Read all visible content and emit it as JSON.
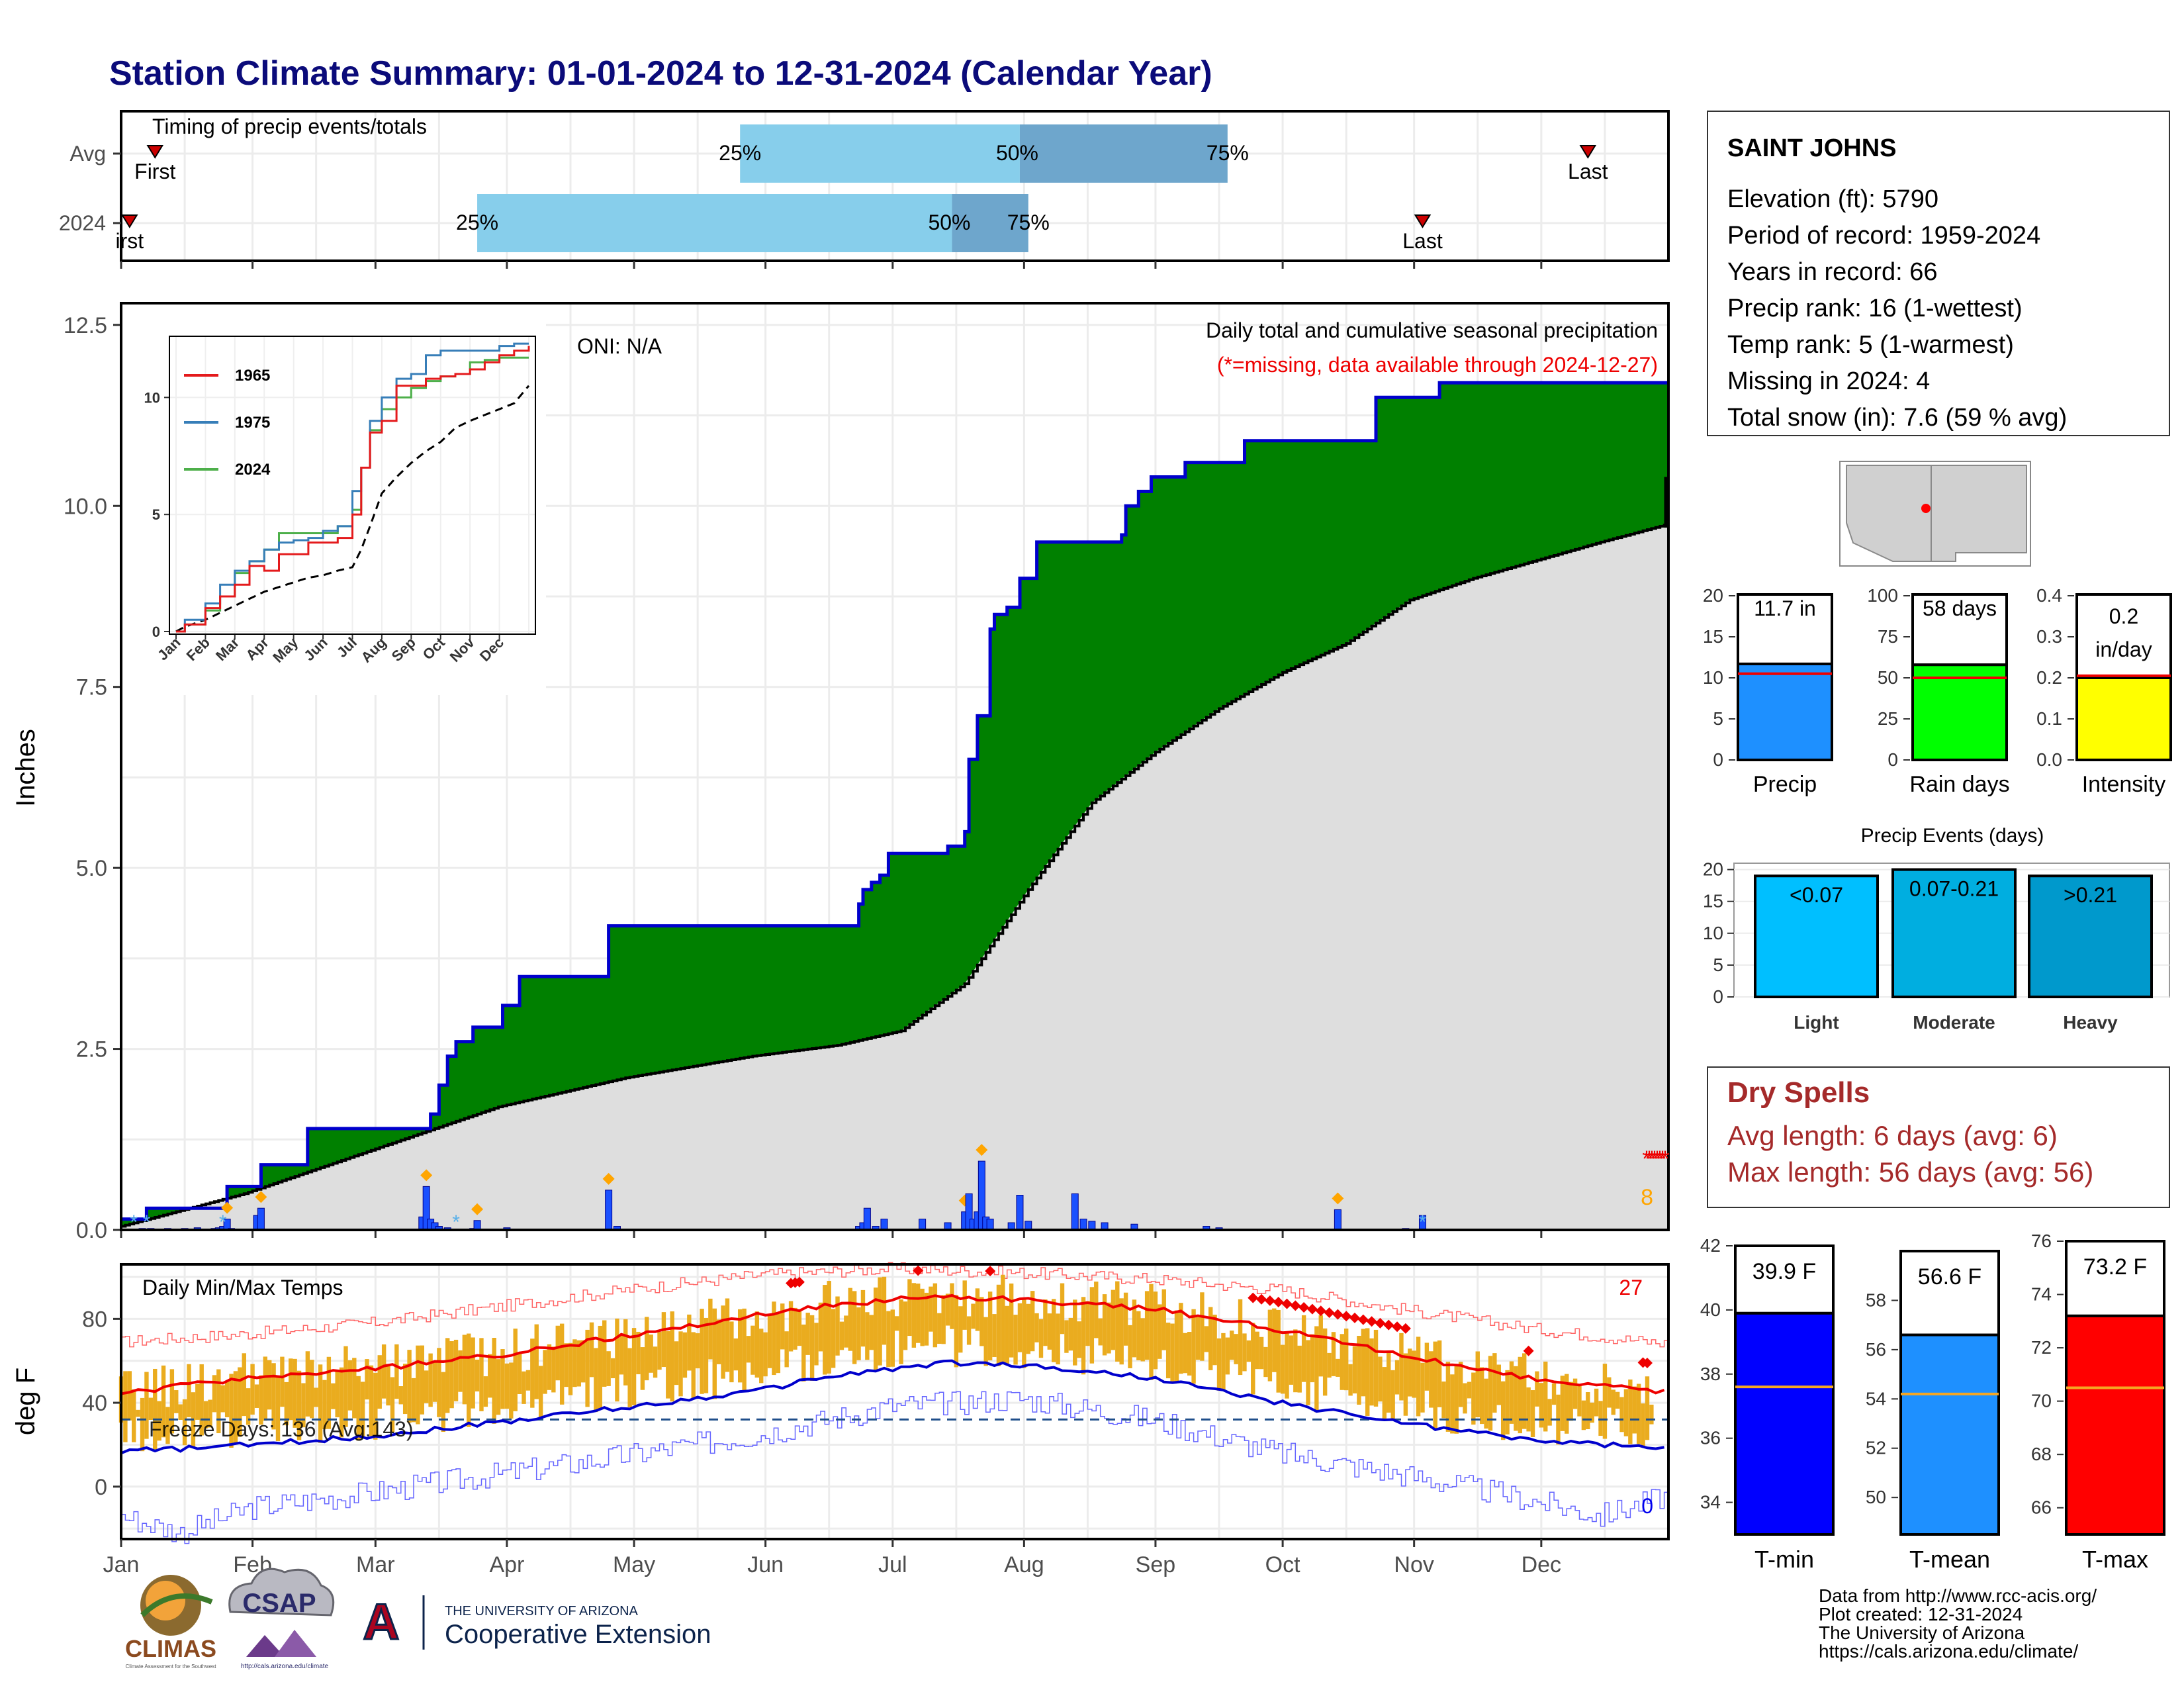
{
  "title": "Station Climate Summary: 01-01-2024 to 12-31-2024 (Calendar Year)",
  "colors": {
    "title": "#0b0b7a",
    "green": "#008000",
    "blue_line": "#0000cc",
    "grey_fill": "#dedede",
    "red": "#ee0000",
    "light_blue": "#87ceeb",
    "mid_blue": "#6ea6cc",
    "gold": "#eaac1f",
    "orange": "#ffa500",
    "bright_blue": "#1a50ff",
    "precip_bar": "#1e90ff",
    "rain_bar": "#00ff00",
    "intensity_bar": "#ffff00",
    "light_bar": "#00bfff",
    "moderate_bar": "#00aee0",
    "heavy_bar": "#0099cc",
    "dry_spells": "#a52a2a",
    "tmin": "#0000ff",
    "tmean": "#1e90ff",
    "tmax": "#ff0000"
  },
  "timing": {
    "title": "Timing of precip events/totals",
    "rows": [
      "Avg",
      "2024"
    ],
    "avg": {
      "first_doy": 9,
      "q25_doy": 147,
      "q50_doy": 213,
      "q75_doy": 262,
      "last_doy": 347,
      "label_first": "First",
      "label_last": "Last"
    },
    "y2024": {
      "first_doy": 3,
      "q25_doy": 85,
      "q50_doy": 197,
      "q75_doy": 215,
      "last_doy": 308,
      "label_first": "irst",
      "label_last": "Last"
    },
    "pct_labels": [
      "25%",
      "50%",
      "75%"
    ]
  },
  "precip_panel": {
    "ylabel": "Inches",
    "oni": "ONI: N/A",
    "legend_title": "Daily total and cumulative seasonal precipitation",
    "missing_note": "(*=missing, data available through 2024-12-27)",
    "missing_count": "8",
    "y_ticks": [
      "0.0",
      "2.5",
      "5.0",
      "7.5",
      "10.0",
      "12.5"
    ]
  },
  "inset": {
    "series": [
      {
        "name": "1965",
        "color": "#e41a1c"
      },
      {
        "name": "1975",
        "color": "#377eb8"
      },
      {
        "name": "2024",
        "color": "#4daf4a"
      }
    ],
    "y_ticks": [
      "0",
      "5",
      "10"
    ],
    "x_ticks": [
      "Jan",
      "Feb",
      "Mar",
      "Apr",
      "May",
      "Jun",
      "Jul",
      "Aug",
      "Sep",
      "Oct",
      "Nov",
      "Dec"
    ]
  },
  "temp_panel": {
    "ylabel": "deg F",
    "title": "Daily Min/Max Temps",
    "freeze_text": "Freeze Days: 136 (Avg:143)",
    "record_high_count": "27",
    "record_low_count": "0",
    "y_ticks": [
      "0",
      "40",
      "80"
    ]
  },
  "months": [
    "Jan",
    "Feb",
    "Mar",
    "Apr",
    "May",
    "Jun",
    "Jul",
    "Aug",
    "Sep",
    "Oct",
    "Nov",
    "Dec"
  ],
  "station": {
    "name": "SAINT JOHNS",
    "lines": [
      "Elevation (ft): 5790",
      "Period of record: 1959-2024",
      "Years in record: 66",
      "Precip rank: 16 (1-wettest)",
      "Temp rank: 5 (1-warmest)",
      "Missing in 2024: 4",
      "Total snow (in): 7.6 (59 % avg)"
    ]
  },
  "mini_bars": [
    {
      "label": "Precip",
      "value_text": "11.7 in",
      "value": 11.7,
      "avg": 10.5,
      "ymax": 20,
      "ticks": [
        "0",
        "5",
        "10",
        "15",
        "20"
      ],
      "color_key": "precip_bar"
    },
    {
      "label": "Rain days",
      "value_text": "58 days",
      "value": 58,
      "avg": 50,
      "ymax": 100,
      "ticks": [
        "0",
        "25",
        "50",
        "75",
        "100"
      ],
      "color_key": "rain_bar"
    },
    {
      "label": "Intensity",
      "value_text": "0.2",
      "value_text2": "in/day",
      "value": 0.2,
      "avg": 0.205,
      "ymax": 0.4,
      "ticks": [
        "0.0",
        "0.1",
        "0.2",
        "0.3",
        "0.4"
      ],
      "color_key": "intensity_bar"
    }
  ],
  "precip_events": {
    "title": "Precip Events (days)",
    "ticks": [
      "0",
      "5",
      "10",
      "15",
      "20"
    ],
    "bars": [
      {
        "cat": "Light",
        "label": "<0.07",
        "value": 19
      },
      {
        "cat": "Moderate",
        "label": "0.07-0.21",
        "value": 20
      },
      {
        "cat": "Heavy",
        "label": ">0.21",
        "value": 19
      }
    ]
  },
  "dry_spells": {
    "title": "Dry Spells",
    "avg_line": "Avg length: 6 days (avg: 6)",
    "max_line": "Max length: 56 days (avg: 56)"
  },
  "temp_bars": [
    {
      "label": "T-min",
      "value_text": "39.9 F",
      "value": 39.9,
      "avg": 37.6,
      "ymin": 33,
      "ymax": 42,
      "ticks": [
        "34",
        "36",
        "38",
        "40",
        "42"
      ],
      "color_key": "tmin"
    },
    {
      "label": "T-mean",
      "value_text": "56.6 F",
      "value": 56.6,
      "avg": 54.2,
      "ymin": 48.5,
      "ymax": 60,
      "ticks": [
        "50",
        "52",
        "54",
        "56",
        "58"
      ],
      "color_key": "tmean"
    },
    {
      "label": "T-max",
      "value_text": "73.2 F",
      "value": 73.2,
      "avg": 70.5,
      "ymin": 65,
      "ymax": 76,
      "ticks": [
        "66",
        "68",
        "70",
        "72",
        "74",
        "76"
      ],
      "color_key": "tmax"
    }
  ],
  "footer": {
    "lines": [
      "Data from http://www.rcc-acis.org/",
      "Plot created: 12-31-2024",
      "The University of Arizona",
      "https://cals.arizona.edu/climate/"
    ],
    "logo_climas": "CLIMAS",
    "logo_climas_sub": "Climate Assessment for the Southwest",
    "logo_csap": "CSAP",
    "logo_csap_sub": "http://cals.arizona.edu/climate",
    "logo_ua_small": "THE UNIVERSITY OF ARIZONA",
    "logo_ua_big": "Cooperative Extension",
    "logo_ua_letter": "A"
  },
  "chart_data": {
    "type": "area",
    "title": "Station Climate Summary: 01-01-2024 to 12-31-2024 (Calendar Year)",
    "ylabel": "Inches",
    "ylim": [
      0,
      12.8
    ],
    "xlim_doy": [
      1,
      366
    ],
    "series": [
      {
        "name": "2024 cumulative",
        "x_doy": [
          1,
          7,
          26,
          34,
          45,
          73,
          74,
          76,
          78,
          80,
          84,
          91,
          95,
          116,
          172,
          175,
          176,
          178,
          180,
          182,
          189,
          196,
          200,
          201,
          203,
          206,
          207,
          209,
          210,
          213,
          217,
          226,
          237,
          238,
          241,
          244,
          245,
          252,
          266,
          270,
          297,
          312,
          366
        ],
        "values": [
          0.15,
          0.3,
          0.6,
          0.9,
          1.4,
          1.4,
          1.6,
          2.0,
          2.4,
          2.6,
          2.8,
          3.1,
          3.5,
          4.2,
          4.2,
          4.5,
          4.7,
          4.8,
          4.9,
          5.2,
          5.2,
          5.3,
          5.5,
          6.5,
          7.1,
          8.3,
          8.5,
          8.5,
          8.6,
          9.0,
          9.5,
          9.5,
          9.6,
          10.0,
          10.2,
          10.4,
          10.4,
          10.6,
          10.9,
          10.9,
          11.5,
          11.7,
          11.7
        ]
      },
      {
        "name": "Average cumulative",
        "x_doy": [
          1,
          30,
          60,
          90,
          120,
          150,
          170,
          185,
          200,
          215,
          230,
          245,
          260,
          275,
          290,
          305,
          320,
          335,
          350,
          366
        ],
        "values": [
          0.05,
          0.5,
          1.1,
          1.7,
          2.1,
          2.4,
          2.55,
          2.75,
          3.4,
          4.7,
          5.9,
          6.6,
          7.2,
          7.7,
          8.1,
          8.7,
          9.0,
          9.25,
          9.5,
          9.75
        ]
      }
    ],
    "daily_precip": {
      "doy": [
        3,
        6,
        8,
        10,
        12,
        14,
        16,
        19,
        21,
        23,
        24,
        25,
        26,
        27,
        33,
        34,
        72,
        73,
        74,
        75,
        76,
        78,
        84,
        85,
        92,
        116,
        118,
        175,
        176,
        177,
        179,
        181,
        190,
        196,
        200,
        201,
        202,
        203,
        204,
        205,
        206,
        211,
        213,
        215,
        226,
        228,
        230,
        233,
        240,
        257,
        260,
        288,
        304,
        308
      ],
      "values": [
        0.01,
        0.02,
        0.02,
        0.01,
        0.02,
        0.01,
        0.02,
        0.03,
        0.01,
        0.02,
        0.03,
        0.05,
        0.15,
        0.02,
        0.2,
        0.3,
        0.18,
        0.6,
        0.15,
        0.1,
        0.05,
        0.03,
        0.02,
        0.13,
        0.03,
        0.55,
        0.05,
        0.05,
        0.1,
        0.3,
        0.05,
        0.15,
        0.15,
        0.1,
        0.25,
        0.5,
        0.15,
        0.25,
        0.95,
        0.18,
        0.15,
        0.1,
        0.48,
        0.12,
        0.5,
        0.15,
        0.12,
        0.1,
        0.08,
        0.05,
        0.03,
        0.28,
        0.02,
        0.2
      ]
    },
    "inset_cumulative": {
      "x_month": [
        0,
        0.3,
        1,
        1.5,
        2,
        2.5,
        3,
        3.5,
        4,
        4.5,
        5,
        5.5,
        6,
        6.3,
        6.6,
        7,
        7.5,
        8,
        8.5,
        9,
        9.5,
        10,
        10.5,
        11,
        11.5,
        12
      ],
      "1965": [
        0,
        0.3,
        1.0,
        1.5,
        2.0,
        2.8,
        2.6,
        3.3,
        3.3,
        3.8,
        3.8,
        4.0,
        5.0,
        7.0,
        8.5,
        9.0,
        10.5,
        10.5,
        10.8,
        10.9,
        11.0,
        11.2,
        11.5,
        11.8,
        12.0,
        12.2
      ],
      "1975": [
        0,
        0.5,
        1.2,
        2.0,
        2.6,
        3.0,
        3.5,
        3.8,
        3.9,
        4.0,
        4.3,
        4.5,
        6.0,
        7.0,
        9.0,
        10.0,
        10.8,
        11.0,
        11.8,
        12.0,
        12.0,
        12.0,
        12.0,
        12.2,
        12.3,
        12.3
      ],
      "2024": [
        0,
        0.3,
        0.9,
        1.5,
        2.5,
        3.0,
        3.5,
        4.2,
        4.2,
        4.2,
        4.2,
        4.5,
        5.2,
        7.0,
        8.6,
        9.5,
        10.0,
        10.4,
        10.7,
        10.9,
        11.0,
        11.5,
        11.6,
        11.7,
        11.7,
        11.7
      ],
      "average": [
        0,
        0.2,
        0.5,
        0.8,
        1.1,
        1.4,
        1.7,
        1.9,
        2.1,
        2.3,
        2.4,
        2.6,
        2.75,
        3.5,
        4.5,
        5.9,
        6.6,
        7.2,
        7.7,
        8.1,
        8.7,
        9.0,
        9.25,
        9.5,
        9.75,
        10.5
      ]
    },
    "temperature": {
      "ylim": [
        -25,
        106
      ],
      "freeze_line_y": 32,
      "normal_high": {
        "x_doy": [
          1,
          15,
          32,
          60,
          91,
          121,
          152,
          166,
          182,
          196,
          213,
          244,
          274,
          305,
          335,
          366
        ],
        "values": [
          44,
          48,
          52,
          56,
          63,
          72,
          82,
          86,
          89,
          91,
          89,
          85,
          75,
          62,
          51,
          45
        ]
      },
      "normal_low": {
        "x_doy": [
          1,
          15,
          32,
          60,
          91,
          121,
          152,
          166,
          182,
          196,
          213,
          244,
          274,
          305,
          335,
          366
        ],
        "values": [
          17,
          18,
          20,
          24,
          31,
          38,
          46,
          52,
          56,
          59,
          58,
          52,
          40,
          30,
          22,
          18
        ]
      },
      "record_high": {
        "x_doy": [
          1,
          32,
          60,
          91,
          121,
          152,
          182,
          213,
          244,
          274,
          305,
          335,
          366
        ],
        "values": [
          69,
          73,
          78,
          86,
          94,
          101,
          104,
          102,
          99,
          94,
          84,
          75,
          68
        ]
      },
      "record_low": {
        "x_doy": [
          1,
          15,
          32,
          60,
          91,
          121,
          152,
          182,
          213,
          244,
          274,
          305,
          330,
          350,
          366
        ],
        "values": [
          -14,
          -22,
          -10,
          -3,
          6,
          15,
          25,
          38,
          42,
          32,
          16,
          5,
          -5,
          -14,
          -4
        ]
      }
    }
  }
}
